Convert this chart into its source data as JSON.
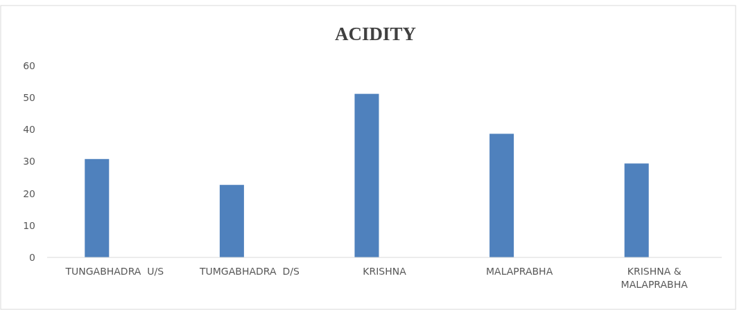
{
  "chart_data": {
    "type": "bar",
    "title": "ACIDITY",
    "categories": [
      "TUNGABHADRA  U/S",
      "TUMGABHADRA  D/S",
      "KRISHNA",
      "MALAPRABHA",
      "KRISHNA & MALAPRABHA"
    ],
    "values": [
      30.8,
      22.7,
      51.2,
      38.7,
      29.4
    ],
    "color": "#4f81bd",
    "ylim": [
      0,
      60
    ],
    "yticks": [
      0,
      10,
      20,
      30,
      40,
      50,
      60
    ],
    "grid": false
  }
}
